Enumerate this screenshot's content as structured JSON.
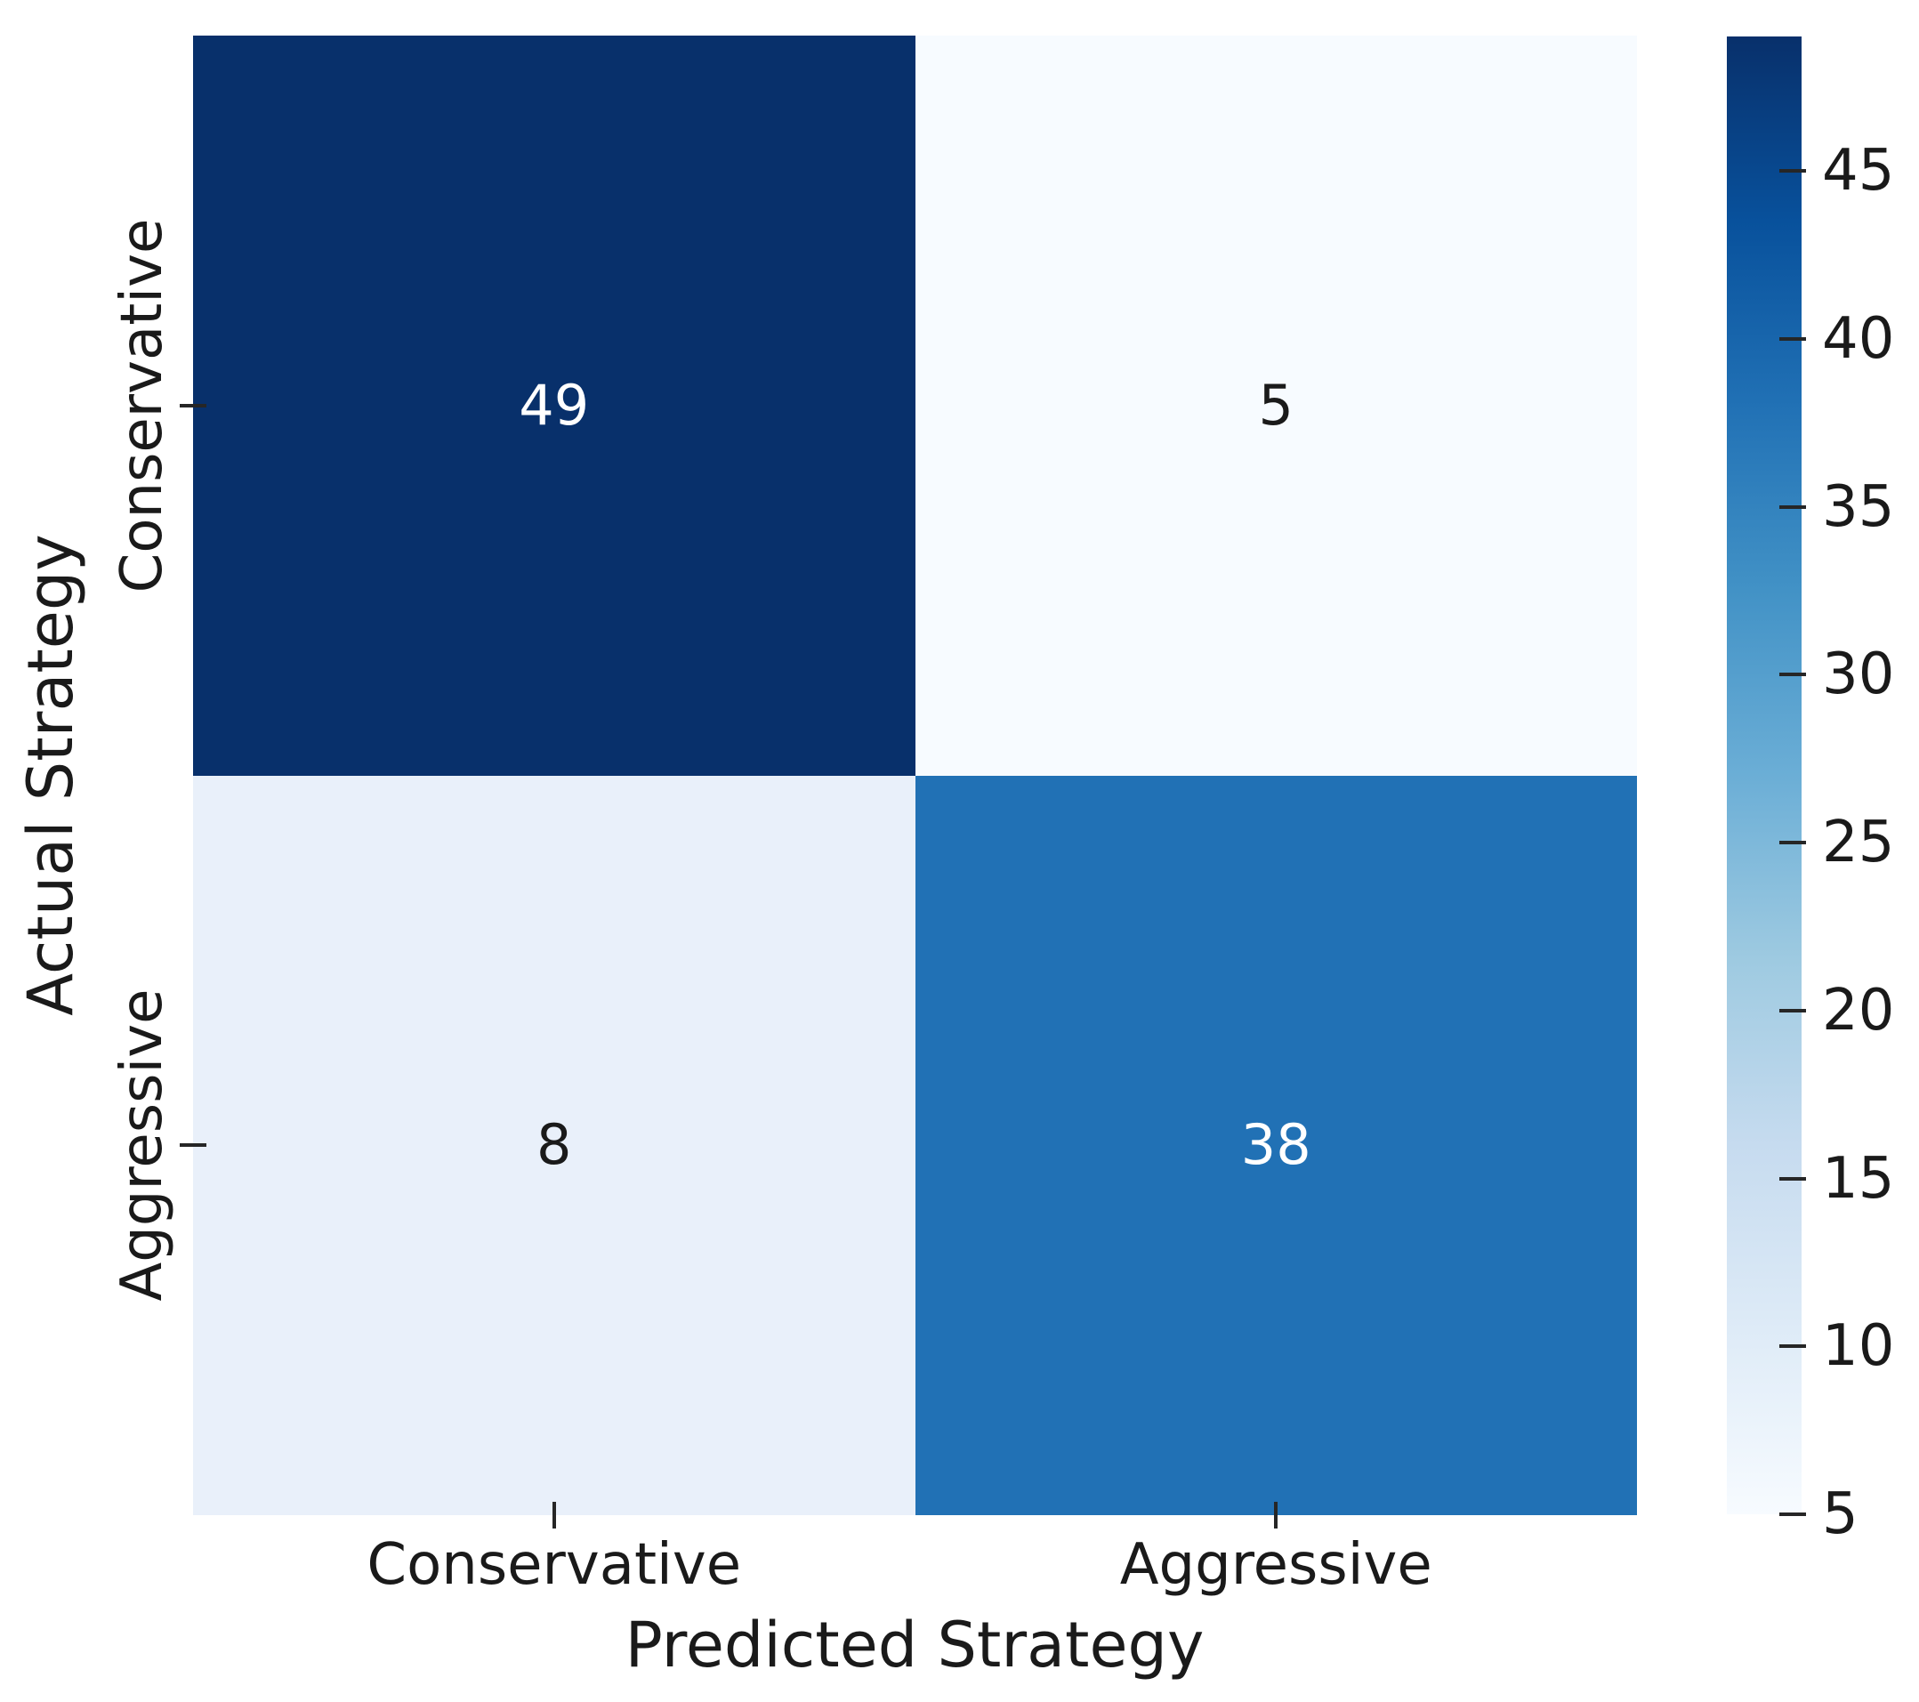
{
  "figure": {
    "background": "#ffffff",
    "text_color": "#1a1a1a",
    "tick_color": "#262626"
  },
  "chart_data": {
    "type": "heatmap",
    "subtype": "confusion-matrix",
    "title": "",
    "xlabel": "Predicted Strategy",
    "ylabel": "Actual Strategy",
    "x_categories": [
      "Conservative",
      "Aggressive"
    ],
    "y_categories": [
      "Conservative",
      "Aggressive"
    ],
    "matrix": [
      [
        49,
        5
      ],
      [
        8,
        38
      ]
    ],
    "vmin": 5,
    "vmax": 49,
    "colormap": "Blues",
    "grid": false,
    "legend_position": "right-colorbar",
    "colorbar_ticks": [
      45,
      40,
      35,
      30,
      25,
      20,
      15,
      10,
      5
    ],
    "colorbar_gradient": [
      "#f7fbff",
      "#deebf7",
      "#c6dbef",
      "#9ecae1",
      "#6baed6",
      "#4292c6",
      "#2171b5",
      "#08519c",
      "#08306b"
    ],
    "cell_colors": [
      [
        "#08306b",
        "#f7fbff"
      ],
      [
        "#e9f0fa",
        "#2171b5"
      ]
    ],
    "cell_text_colors": [
      [
        "#ffffff",
        "#1a1a1a"
      ],
      [
        "#1a1a1a",
        "#ffffff"
      ]
    ]
  }
}
